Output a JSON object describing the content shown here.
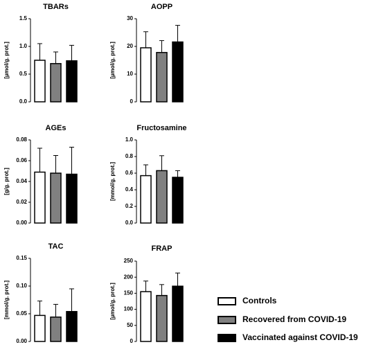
{
  "legend": {
    "entries": [
      {
        "label": "Controls",
        "color": "#ffffff"
      },
      {
        "label": "Recovered from COVID-19",
        "color": "#808080"
      },
      {
        "label": "Vaccinated against COVID-19",
        "color": "#000000"
      }
    ]
  },
  "chart_data": [
    {
      "type": "bar",
      "title": "TBARs",
      "ylabel": "[µmol/g. prot.]",
      "ylim": [
        0,
        1.5
      ],
      "yticks": [
        "0.0",
        "0.5",
        "1.0",
        "1.5"
      ],
      "categories": [
        "Controls",
        "Recovered from COVID-19",
        "Vaccinated against COVID-19"
      ],
      "values": [
        0.75,
        0.69,
        0.74
      ],
      "errors": [
        0.3,
        0.21,
        0.28
      ]
    },
    {
      "type": "bar",
      "title": "AOPP",
      "ylabel": "[µmol/g. prot.]",
      "ylim": [
        0,
        30
      ],
      "yticks": [
        "0",
        "10",
        "20",
        "30"
      ],
      "categories": [
        "Controls",
        "Recovered from COVID-19",
        "Vaccinated against COVID-19"
      ],
      "values": [
        19.5,
        17.8,
        21.6
      ],
      "errors": [
        5.8,
        4.3,
        6.0
      ]
    },
    {
      "type": "bar",
      "title": "AGEs",
      "ylabel": "[g/g. prot.]",
      "ylim": [
        0,
        0.08
      ],
      "yticks": [
        "0.00",
        "0.02",
        "0.04",
        "0.06",
        "0.08"
      ],
      "categories": [
        "Controls",
        "Recovered from COVID-19",
        "Vaccinated against COVID-19"
      ],
      "values": [
        0.049,
        0.048,
        0.047
      ],
      "errors": [
        0.023,
        0.017,
        0.026
      ]
    },
    {
      "type": "bar",
      "title": "Fructosamine",
      "ylabel": "[mmol/g. prot.]",
      "ylim": [
        0,
        1.0
      ],
      "yticks": [
        "0.0",
        "0.2",
        "0.4",
        "0.6",
        "0.8",
        "1.0"
      ],
      "categories": [
        "Controls",
        "Recovered from COVID-19",
        "Vaccinated against COVID-19"
      ],
      "values": [
        0.57,
        0.63,
        0.55
      ],
      "errors": [
        0.13,
        0.18,
        0.08
      ]
    },
    {
      "type": "bar",
      "title": "TAC",
      "ylabel": "[mmol/g. prot.]",
      "ylim": [
        0,
        0.15
      ],
      "yticks": [
        "0.00",
        "0.05",
        "0.10",
        "0.15"
      ],
      "categories": [
        "Controls",
        "Recovered from COVID-19",
        "Vaccinated against COVID-19"
      ],
      "values": [
        0.047,
        0.044,
        0.054
      ],
      "errors": [
        0.026,
        0.023,
        0.041
      ]
    },
    {
      "type": "bar",
      "title": "FRAP",
      "ylabel": "[µmol/g. prot.]",
      "ylim": [
        0,
        250
      ],
      "yticks": [
        "0",
        "50",
        "100",
        "150",
        "200",
        "250"
      ],
      "categories": [
        "Controls",
        "Recovered from COVID-19",
        "Vaccinated against COVID-19"
      ],
      "values": [
        155,
        143,
        172
      ],
      "errors": [
        33,
        34,
        41
      ]
    }
  ]
}
